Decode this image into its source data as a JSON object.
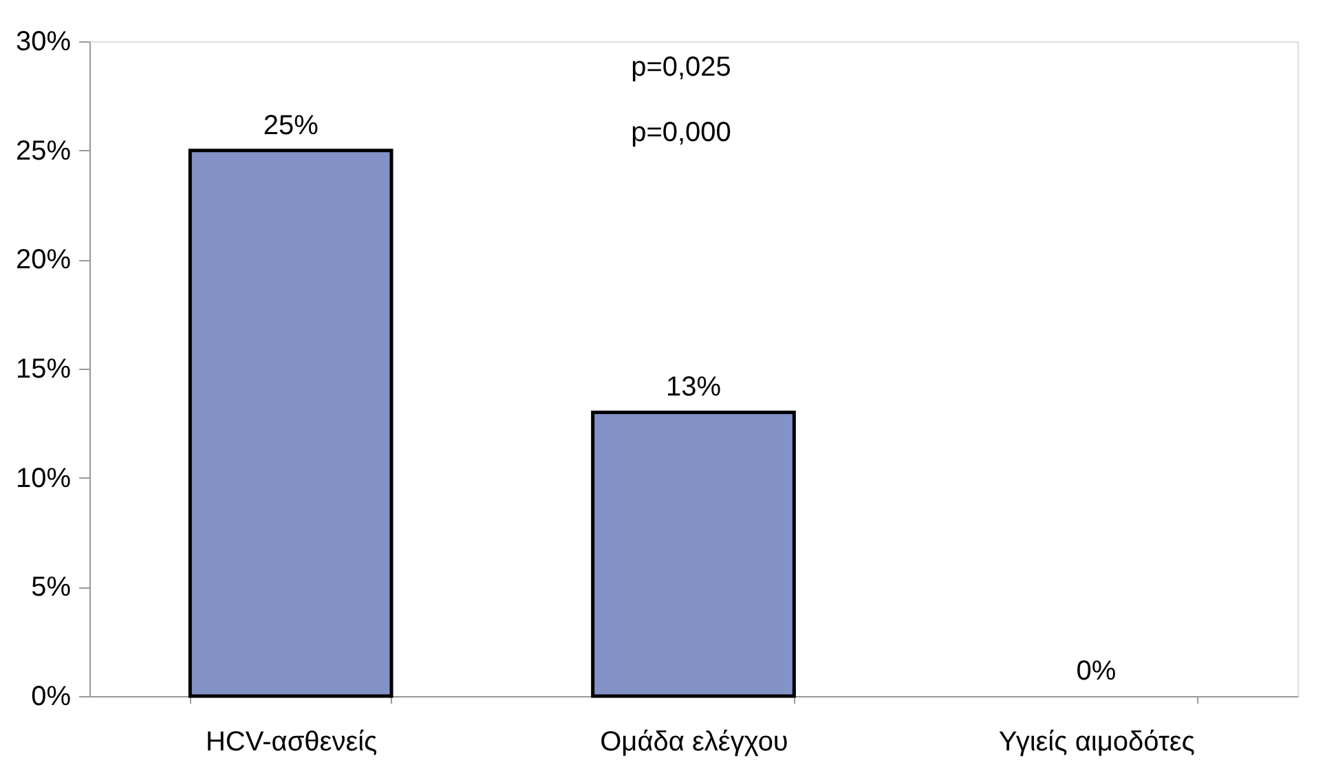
{
  "chart_data": {
    "type": "bar",
    "categories": [
      "HCV-ασθενείς",
      "Ομάδα ελέγχου",
      "Υγιείς αιμοδότες"
    ],
    "values": [
      25,
      13,
      0
    ],
    "value_labels": [
      "25%",
      "13%",
      "0%"
    ],
    "color": "#8393c7",
    "ylim": [
      0,
      30
    ],
    "yticks": [
      {
        "value": 0,
        "label": "0%"
      },
      {
        "value": 5,
        "label": "5%"
      },
      {
        "value": 10,
        "label": "10%"
      },
      {
        "value": 15,
        "label": "15%"
      },
      {
        "value": 20,
        "label": "20%"
      },
      {
        "value": 25,
        "label": "25%"
      },
      {
        "value": 30,
        "label": "30%"
      }
    ],
    "annotations": [
      "p=0,025",
      "p=0,000"
    ],
    "grid": false
  }
}
